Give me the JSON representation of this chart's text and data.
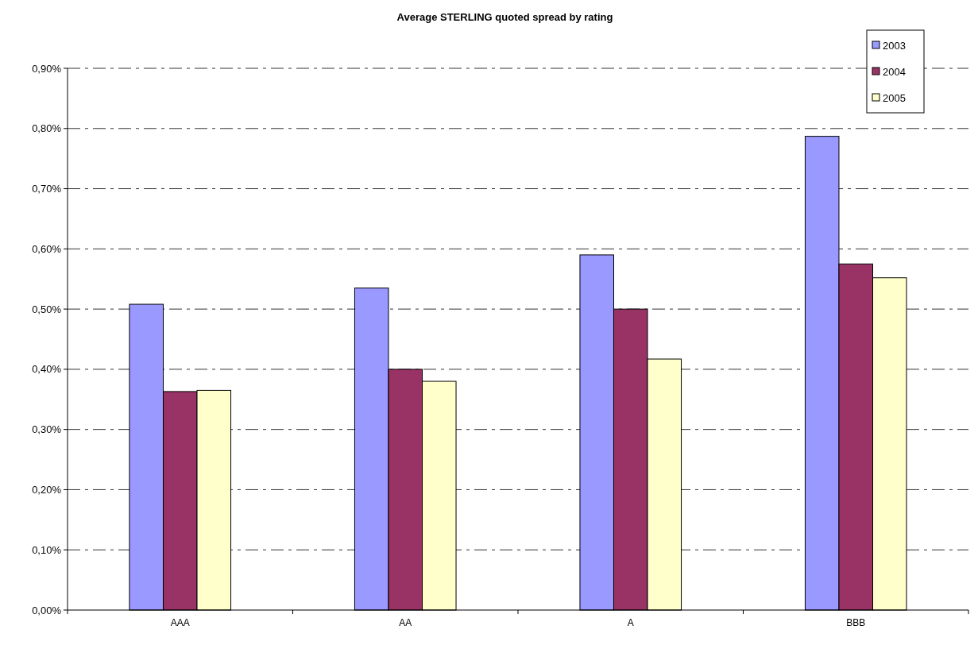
{
  "chart_data": {
    "type": "bar",
    "title": "Average STERLING quoted spread by rating",
    "categories": [
      "AAA",
      "AA",
      "A",
      "BBB"
    ],
    "series": [
      {
        "name": "2003",
        "color": "#9999ff",
        "values": [
          0.508,
          0.535,
          0.59,
          0.787
        ]
      },
      {
        "name": "2004",
        "color": "#993366",
        "values": [
          0.363,
          0.4,
          0.5,
          0.575
        ]
      },
      {
        "name": "2005",
        "color": "#ffffcc",
        "values": [
          0.365,
          0.38,
          0.417,
          0.552
        ]
      }
    ],
    "ylim": [
      0,
      0.9
    ],
    "yticks": [
      {
        "value": 0,
        "label": "0,00%"
      },
      {
        "value": 0.1,
        "label": "0,10%"
      },
      {
        "value": 0.2,
        "label": "0,20%"
      },
      {
        "value": 0.3,
        "label": "0,30%"
      },
      {
        "value": 0.4,
        "label": "0,40%"
      },
      {
        "value": 0.5,
        "label": "0,50%"
      },
      {
        "value": 0.6,
        "label": "0,60%"
      },
      {
        "value": 0.7,
        "label": "0,70%"
      },
      {
        "value": 0.8,
        "label": "0,80%"
      },
      {
        "value": 0.9,
        "label": "0,90%"
      }
    ],
    "grid": "y",
    "legend": "top right"
  }
}
